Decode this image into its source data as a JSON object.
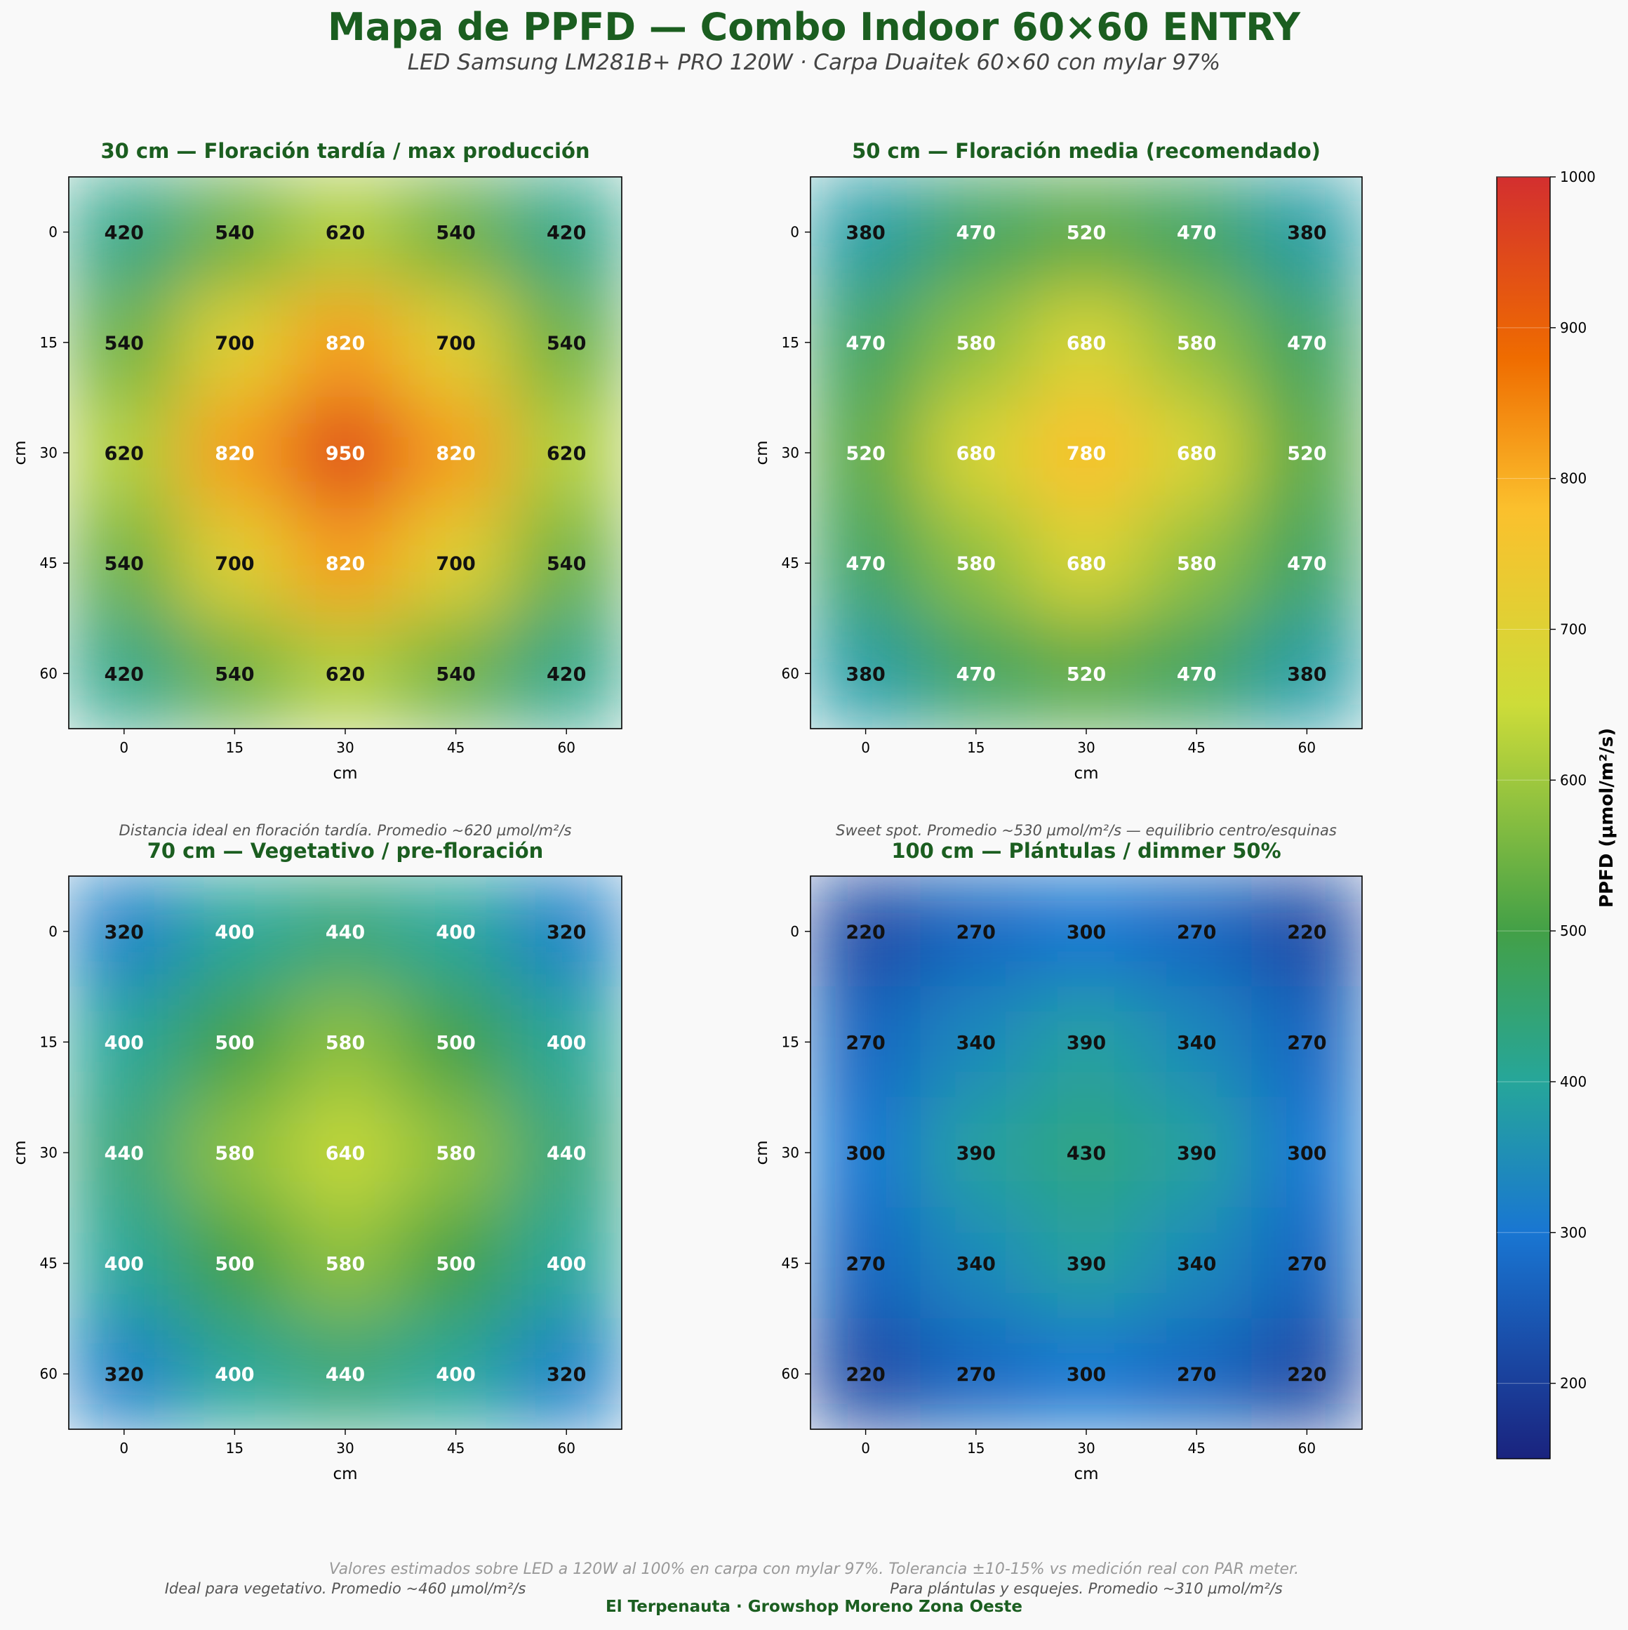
{
  "title": "Mapa de PPFD — Combo Indoor 60×60 ENTRY",
  "subtitle": "LED Samsung LM281B+ PRO 120W · Carpa Duaitek 60×60 con mylar 97%",
  "footer_note": "Valores estimados sobre LED a 120W al 100% en carpa con mylar 97%. Tolerancia ±10-15% vs medición real con PAR meter.",
  "footer_brand": "El Terpenauta · Growshop Moreno Zona Oeste",
  "colors": {
    "title": "#1b5e20",
    "light_text": "#ffffff",
    "dark_text": "#111111",
    "caption": "#555555",
    "footer_note": "#999999"
  },
  "colorbar": {
    "label": "PPFD (µmol/m²/s)",
    "range": [
      150,
      1000
    ],
    "ticks": [
      "200",
      "300",
      "400",
      "500",
      "600",
      "700",
      "800",
      "900",
      "1000"
    ],
    "stops": [
      {
        "value": 150,
        "color": "#1a237e"
      },
      {
        "value": 300,
        "color": "#1976d2"
      },
      {
        "value": 400,
        "color": "#26a69a"
      },
      {
        "value": 500,
        "color": "#43a047"
      },
      {
        "value": 650,
        "color": "#cddc39"
      },
      {
        "value": 780,
        "color": "#fbc02d"
      },
      {
        "value": 880,
        "color": "#ef6c00"
      },
      {
        "value": 1000,
        "color": "#d32f2f"
      }
    ]
  },
  "chart_data": [
    {
      "type": "heatmap",
      "title": "30 cm — Floración tardía / max producción",
      "caption": "Distancia ideal en floración tardía. Promedio ~620 µmol/m²/s",
      "xlabel": "cm",
      "ylabel": "cm",
      "x": [
        "0",
        "15",
        "30",
        "45",
        "60"
      ],
      "y": [
        "0",
        "15",
        "30",
        "45",
        "60"
      ],
      "values": [
        [
          420,
          540,
          620,
          540,
          420
        ],
        [
          540,
          700,
          820,
          700,
          540
        ],
        [
          620,
          820,
          950,
          820,
          620
        ],
        [
          540,
          700,
          820,
          700,
          540
        ],
        [
          420,
          540,
          620,
          540,
          420
        ]
      ],
      "light_label_threshold": 800
    },
    {
      "type": "heatmap",
      "title": "50 cm — Floración media (recomendado)",
      "caption": "Sweet spot. Promedio ~530 µmol/m²/s — equilibrio centro/esquinas",
      "xlabel": "cm",
      "ylabel": "cm",
      "x": [
        "0",
        "15",
        "30",
        "45",
        "60"
      ],
      "y": [
        "0",
        "15",
        "30",
        "45",
        "60"
      ],
      "values": [
        [
          380,
          470,
          520,
          470,
          380
        ],
        [
          470,
          580,
          680,
          580,
          470
        ],
        [
          520,
          680,
          780,
          680,
          520
        ],
        [
          470,
          580,
          680,
          580,
          470
        ],
        [
          380,
          470,
          520,
          470,
          380
        ]
      ],
      "light_label_threshold": 400
    },
    {
      "type": "heatmap",
      "title": "70 cm — Vegetativo / pre-floración",
      "caption": "Ideal para vegetativo. Promedio ~460 µmol/m²/s",
      "xlabel": "cm",
      "ylabel": "cm",
      "x": [
        "0",
        "15",
        "30",
        "45",
        "60"
      ],
      "y": [
        "0",
        "15",
        "30",
        "45",
        "60"
      ],
      "values": [
        [
          320,
          400,
          440,
          400,
          320
        ],
        [
          400,
          500,
          580,
          500,
          400
        ],
        [
          440,
          580,
          640,
          580,
          440
        ],
        [
          400,
          500,
          580,
          500,
          400
        ],
        [
          320,
          400,
          440,
          400,
          320
        ]
      ],
      "light_label_threshold": 350
    },
    {
      "type": "heatmap",
      "title": "100 cm — Plántulas / dimmer 50%",
      "caption": "Para plántulas y esquejes. Promedio ~310 µmol/m²/s",
      "xlabel": "cm",
      "ylabel": "cm",
      "x": [
        "0",
        "15",
        "30",
        "45",
        "60"
      ],
      "y": [
        "0",
        "15",
        "30",
        "45",
        "60"
      ],
      "values": [
        [
          220,
          270,
          300,
          270,
          220
        ],
        [
          270,
          340,
          390,
          340,
          270
        ],
        [
          300,
          390,
          430,
          390,
          300
        ],
        [
          270,
          340,
          390,
          340,
          270
        ],
        [
          220,
          270,
          300,
          270,
          220
        ]
      ],
      "light_label_threshold": 1000
    }
  ]
}
